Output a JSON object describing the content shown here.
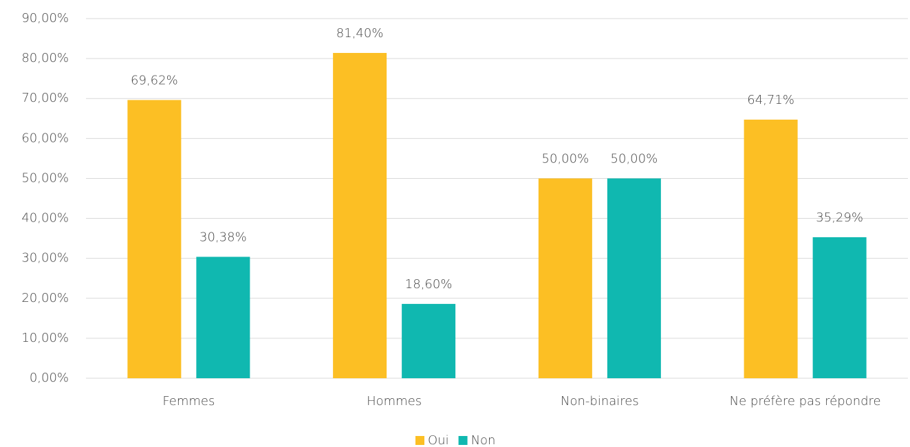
{
  "chart_data": {
    "type": "bar",
    "categories": [
      "Femmes",
      "Hommes",
      "Non-binaires",
      "Ne préfère pas répondre"
    ],
    "series": [
      {
        "name": "Oui",
        "color": "#fcbf24",
        "values": [
          69.62,
          81.4,
          50,
          64.71
        ],
        "value_labels": [
          "69,62%",
          "81,40%",
          "50,00%",
          "64,71%"
        ]
      },
      {
        "name": "Non",
        "color": "#10b8b0",
        "values": [
          30.38,
          18.6,
          50,
          35.29
        ],
        "value_labels": [
          "30,38%",
          "18,60%",
          "50,00%",
          "35,29%"
        ]
      }
    ],
    "ylim": [
      0,
      90
    ],
    "yticks": [
      {
        "value": 0,
        "label": "0,00%"
      },
      {
        "value": 10,
        "label": "10,00%"
      },
      {
        "value": 20,
        "label": "20,00%"
      },
      {
        "value": 30,
        "label": "30,00%"
      },
      {
        "value": 40,
        "label": "40,00%"
      },
      {
        "value": 50,
        "label": "50,00%"
      },
      {
        "value": 60,
        "label": "60,00%"
      },
      {
        "value": 70,
        "label": "70,00%"
      },
      {
        "value": 80,
        "label": "80,00%"
      },
      {
        "value": 90,
        "label": "90,00%"
      }
    ],
    "grid": true,
    "legend": "bottom"
  }
}
